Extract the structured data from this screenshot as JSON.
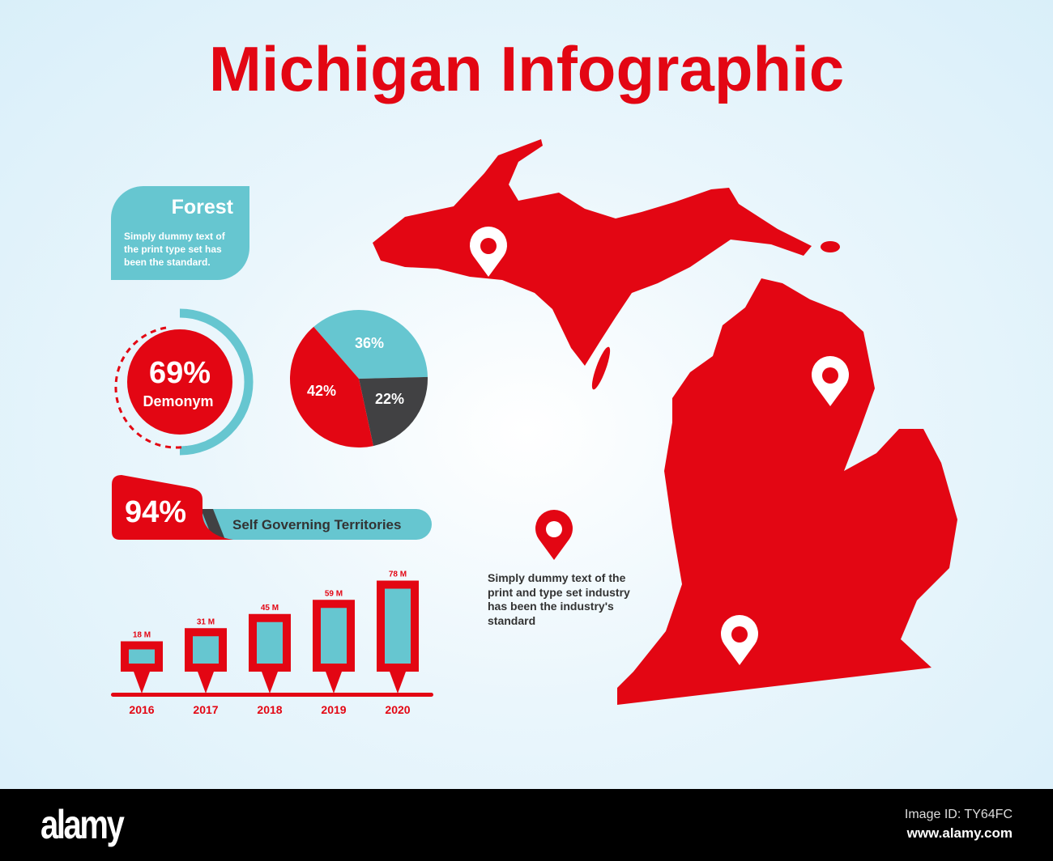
{
  "title": "Michigan Infographic",
  "forest": {
    "heading": "Forest",
    "text": "Simply dummy text of the print type set has been the standard."
  },
  "donut": {
    "value": "69%",
    "label": "Demonym",
    "fraction": 0.69
  },
  "pie": {
    "slices": [
      {
        "label": "36%",
        "value": 36,
        "color": "#66c6d0"
      },
      {
        "label": "22%",
        "value": 22,
        "color": "#414143"
      },
      {
        "label": "42%",
        "value": 42,
        "color": "#e30613"
      }
    ]
  },
  "territories": {
    "value": "94%",
    "label": "Self Governing Territories"
  },
  "chart_data": {
    "type": "bar",
    "categories": [
      "2016",
      "2017",
      "2018",
      "2019",
      "2020"
    ],
    "values": [
      18,
      31,
      45,
      59,
      78
    ],
    "data_labels": [
      "18 M",
      "31 M",
      "45 M",
      "59 M",
      "78 M"
    ]
  },
  "note": "Simply dummy text of the print and type set industry has been the industry's standard",
  "colors": {
    "red": "#e30613",
    "cyan": "#66c6d0",
    "dark": "#414143"
  },
  "footer": {
    "logo": "alamy",
    "image_id": "Image ID: TY64FC",
    "url": "www.alamy.com"
  }
}
